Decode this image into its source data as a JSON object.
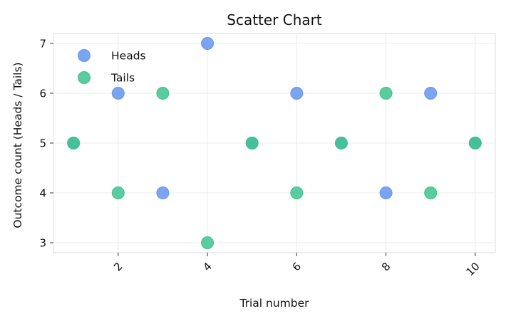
{
  "chart_data": {
    "type": "scatter",
    "title": "Scatter Chart",
    "xlabel": "Trial number",
    "ylabel": "Outcome count (Heads / Tails)",
    "xlim": [
      0.55,
      10.45
    ],
    "ylim": [
      2.8,
      7.2
    ],
    "xticks": [
      2,
      4,
      6,
      8,
      10
    ],
    "yticks": [
      3,
      4,
      5,
      6,
      7
    ],
    "grid": true,
    "legend_position": "top-left",
    "series": [
      {
        "name": "Heads",
        "color": "#6495ED",
        "x": [
          1,
          2,
          3,
          4,
          5,
          6,
          7,
          8,
          9,
          10
        ],
        "y": [
          5,
          6,
          4,
          7,
          5,
          6,
          5,
          4,
          6,
          5
        ]
      },
      {
        "name": "Tails",
        "color": "#3CC48C",
        "x": [
          1,
          2,
          3,
          4,
          5,
          6,
          7,
          8,
          9,
          10
        ],
        "y": [
          5,
          4,
          6,
          3,
          5,
          4,
          5,
          6,
          4,
          5
        ]
      }
    ]
  }
}
